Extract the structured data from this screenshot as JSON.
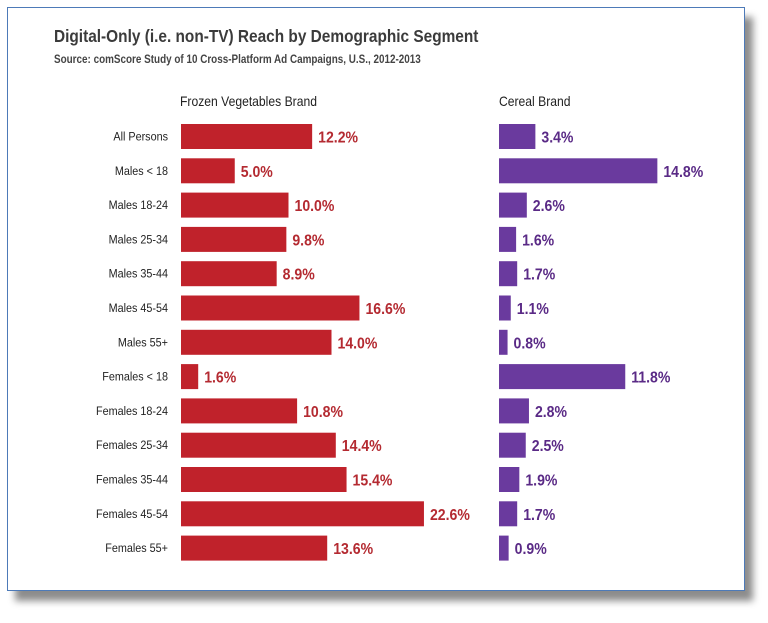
{
  "chart": {
    "title": "Digital-Only (i.e. non-TV) Reach by Demographic Segment",
    "subtitle": "Source: comScore Study of 10 Cross-Platform Ad Campaigns, U.S., 2012-2013"
  },
  "chart_data": {
    "type": "bar",
    "orientation": "horizontal",
    "title": "Digital-Only (i.e. non-TV) Reach by Demographic Segment",
    "subtitle": "Source: comScore Study of 10 Cross-Platform Ad Campaigns, U.S., 2012-2013",
    "categories": [
      "All Persons",
      "Males < 18",
      "Males 18-24",
      "Males 25-34",
      "Males 35-44",
      "Males 45-54",
      "Males 55+",
      "Females < 18",
      "Females 18-24",
      "Females 25-34",
      "Females 35-44",
      "Females 45-54",
      "Females 55+"
    ],
    "series": [
      {
        "name": "Frozen Vegetables Brand",
        "color": "#c0222b",
        "values": [
          12.2,
          5.0,
          10.0,
          9.8,
          8.9,
          16.6,
          14.0,
          1.6,
          10.8,
          14.4,
          15.4,
          22.6,
          13.6
        ],
        "labels": [
          "12.2%",
          "5.0%",
          "10.0%",
          "9.8%",
          "8.9%",
          "16.6%",
          "14.0%",
          "1.6%",
          "10.8%",
          "14.4%",
          "15.4%",
          "22.6%",
          "13.6%"
        ]
      },
      {
        "name": "Cereal Brand",
        "color": "#6a3a9e",
        "values": [
          3.4,
          14.8,
          2.6,
          1.6,
          1.7,
          1.1,
          0.8,
          11.8,
          2.8,
          2.5,
          1.9,
          1.7,
          0.9
        ],
        "labels": [
          "3.4%",
          "14.8%",
          "2.6%",
          "1.6%",
          "1.7%",
          "1.1%",
          "0.8%",
          "11.8%",
          "2.8%",
          "2.5%",
          "1.9%",
          "1.7%",
          "0.9%"
        ]
      }
    ],
    "grid": false,
    "legend": "none"
  }
}
